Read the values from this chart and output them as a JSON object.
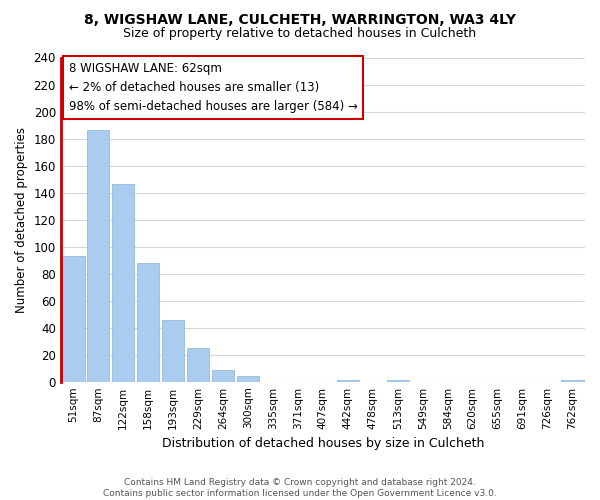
{
  "title": "8, WIGSHAW LANE, CULCHETH, WARRINGTON, WA3 4LY",
  "subtitle": "Size of property relative to detached houses in Culcheth",
  "xlabel": "Distribution of detached houses by size in Culcheth",
  "ylabel": "Number of detached properties",
  "bar_labels": [
    "51sqm",
    "87sqm",
    "122sqm",
    "158sqm",
    "193sqm",
    "229sqm",
    "264sqm",
    "300sqm",
    "335sqm",
    "371sqm",
    "407sqm",
    "442sqm",
    "478sqm",
    "513sqm",
    "549sqm",
    "584sqm",
    "620sqm",
    "655sqm",
    "691sqm",
    "726sqm",
    "762sqm"
  ],
  "bar_values": [
    93,
    186,
    146,
    88,
    46,
    25,
    9,
    4,
    0,
    0,
    0,
    1,
    0,
    1,
    0,
    0,
    0,
    0,
    0,
    0,
    1
  ],
  "bar_color": "#aaccee",
  "highlight_color": "#cc0000",
  "ylim": [
    0,
    240
  ],
  "yticks": [
    0,
    20,
    40,
    60,
    80,
    100,
    120,
    140,
    160,
    180,
    200,
    220,
    240
  ],
  "annotation_title": "8 WIGSHAW LANE: 62sqm",
  "annotation_line1": "← 2% of detached houses are smaller (13)",
  "annotation_line2": "98% of semi-detached houses are larger (584) →",
  "annotation_box_color": "#ffffff",
  "annotation_box_edge_color": "#cc0000",
  "footer_line1": "Contains HM Land Registry data © Crown copyright and database right 2024.",
  "footer_line2": "Contains public sector information licensed under the Open Government Licence v3.0.",
  "bg_color": "#ffffff",
  "grid_color": "#d0d8e4"
}
